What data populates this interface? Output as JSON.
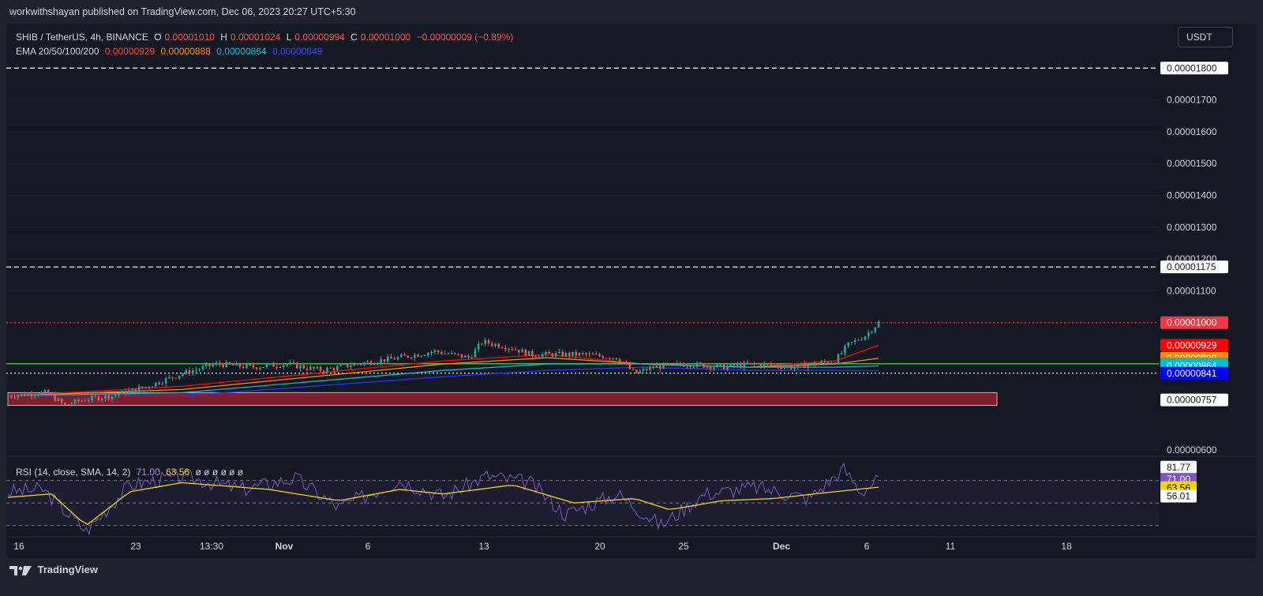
{
  "header": {
    "published_text": "workwithshayan published on TradingView.com, Dec 06, 2023 20:27 UTC+5:30"
  },
  "legend": {
    "symbol": "SHIB / TetherUS, 4h, BINANCE",
    "o_label": "O",
    "o_value": "0.00001010",
    "h_label": "H",
    "h_value": "0.00001024",
    "l_label": "L",
    "l_value": "0.00000994",
    "c_label": "C",
    "c_value": "0.00001000",
    "change": "−0.00000009 (−0.89%)",
    "ema_label": "EMA 20/50/100/200",
    "ema_values": [
      "0.00000929",
      "0.00000888",
      "0.00000864",
      "0.00000849"
    ],
    "rsi_label": "RSI (14, close, SMA, 14, 2)",
    "rsi_value": "71.00",
    "rsi_sma_value": "63.56",
    "rsi_extra": "ø  ø  ø  ø  ø  ø"
  },
  "currency_button": "USDT",
  "colors": {
    "up": "#26a69a",
    "down": "#ef5350",
    "ema20": "#ff0000",
    "ema50": "#ff8c00",
    "ema100": "#00bcd4",
    "ema200": "#2233ff",
    "support_line": "#4caf50",
    "demand_zone": "#7f1f2e",
    "rsi_line": "#7e57c2",
    "rsi_sma": "#f5d40f"
  },
  "chart_data": {
    "type": "candlestick",
    "x_axis_labels": [
      "16",
      "23",
      "13:30",
      "Nov",
      "6",
      "13",
      "20",
      "25",
      "Dec",
      "6",
      "11",
      "18"
    ],
    "y_axis_labels": [
      "0.00001700",
      "0.00001600",
      "0.00001500",
      "0.00001400",
      "0.00001300",
      "0.00001200",
      "0.00001100",
      "0.00000600"
    ],
    "y_range": [
      5.8e-06,
      1.89e-05
    ],
    "price_tags": [
      {
        "label": "0.00001800",
        "value": 1.8e-05,
        "bg": "#ffffff",
        "fg": "#131722"
      },
      {
        "label": "0.00001175",
        "value": 1.175e-05,
        "bg": "#ffffff",
        "fg": "#131722"
      },
      {
        "label": "0.00001000",
        "value": 1e-05,
        "bg": "#f23645",
        "fg": "#ffffff"
      },
      {
        "label": "0.00000929",
        "value": 9.29e-06,
        "bg": "#ff0000",
        "fg": "#ffffff"
      },
      {
        "label": "0.00000888",
        "value": 8.88e-06,
        "bg": "#ff8c00",
        "fg": "#ffffff"
      },
      {
        "label": "0.00000871",
        "value": 8.71e-06,
        "bg": "#4caf50",
        "fg": "#ffffff"
      },
      {
        "label": "0.00000864",
        "value": 8.64e-06,
        "bg": "#00bcd4",
        "fg": "#ffffff"
      },
      {
        "label": "0.00000841",
        "value": 8.41e-06,
        "bg": "#0000ff",
        "fg": "#ffffff"
      },
      {
        "label": "0.00000757",
        "value": 7.57e-06,
        "bg": "#ffffff",
        "fg": "#131722"
      }
    ],
    "horizontal_lines": [
      {
        "value": 1.8e-05,
        "style": "dashed",
        "color": "#ffffff"
      },
      {
        "value": 1.175e-05,
        "style": "dashed",
        "color": "#ffffff"
      },
      {
        "value": 8.71e-06,
        "style": "solid",
        "color": "#4caf50"
      },
      {
        "value": 8.41e-06,
        "style": "dotted",
        "color": "#ffffff"
      },
      {
        "value": 1e-05,
        "style": "dotted",
        "color": "#f23645"
      }
    ],
    "demand_zone": {
      "from": 7.4e-06,
      "to": 7.8e-06
    },
    "price_path": [
      [
        0,
        7.7e-06
      ],
      [
        0.045,
        7.8e-06
      ],
      [
        0.065,
        7.4e-06
      ],
      [
        0.09,
        7.6e-06
      ],
      [
        0.12,
        7.7e-06
      ],
      [
        0.16,
        8e-06
      ],
      [
        0.2,
        8.4e-06
      ],
      [
        0.24,
        8.7e-06
      ],
      [
        0.28,
        8.6e-06
      ],
      [
        0.32,
        8.7e-06
      ],
      [
        0.36,
        8.5e-06
      ],
      [
        0.4,
        8.7e-06
      ],
      [
        0.45,
        8.9e-06
      ],
      [
        0.49,
        9.1e-06
      ],
      [
        0.53,
        8.9e-06
      ],
      [
        0.545,
        9.4e-06
      ],
      [
        0.58,
        9.2e-06
      ],
      [
        0.6,
        9e-06
      ],
      [
        0.64,
        9e-06
      ],
      [
        0.66,
        9e-06
      ],
      [
        0.7,
        8.9e-06
      ],
      [
        0.72,
        8.4e-06
      ],
      [
        0.74,
        8.6e-06
      ],
      [
        0.78,
        8.7e-06
      ],
      [
        0.82,
        8.6e-06
      ],
      [
        0.86,
        8.7e-06
      ],
      [
        0.9,
        8.6e-06
      ],
      [
        0.95,
        8.8e-06
      ],
      [
        0.965,
        9.3e-06
      ],
      [
        0.985,
        9.6e-06
      ],
      [
        1.0,
        1e-05
      ]
    ],
    "ema_series": [
      {
        "name": "EMA 20",
        "path": [
          [
            0,
            7.7e-06
          ],
          [
            0.2,
            8e-06
          ],
          [
            0.5,
            8.8e-06
          ],
          [
            0.62,
            9e-06
          ],
          [
            0.73,
            8.7e-06
          ],
          [
            0.85,
            8.6e-06
          ],
          [
            0.95,
            8.8e-06
          ],
          [
            1.0,
            9.29e-06
          ]
        ]
      },
      {
        "name": "EMA 50",
        "path": [
          [
            0,
            7.7e-06
          ],
          [
            0.2,
            7.9e-06
          ],
          [
            0.5,
            8.7e-06
          ],
          [
            0.62,
            8.9e-06
          ],
          [
            0.73,
            8.7e-06
          ],
          [
            0.85,
            8.6e-06
          ],
          [
            0.95,
            8.7e-06
          ],
          [
            1.0,
            8.88e-06
          ]
        ]
      },
      {
        "name": "EMA 100",
        "path": [
          [
            0,
            7.7e-06
          ],
          [
            0.2,
            7.8e-06
          ],
          [
            0.5,
            8.5e-06
          ],
          [
            0.62,
            8.7e-06
          ],
          [
            0.73,
            8.7e-06
          ],
          [
            0.85,
            8.6e-06
          ],
          [
            0.95,
            8.6e-06
          ],
          [
            1.0,
            8.64e-06
          ]
        ]
      },
      {
        "name": "EMA 200",
        "path": [
          [
            0,
            7.7e-06
          ],
          [
            0.2,
            7.7e-06
          ],
          [
            0.5,
            8.3e-06
          ],
          [
            0.62,
            8.5e-06
          ],
          [
            0.73,
            8.6e-06
          ],
          [
            0.85,
            8.5e-06
          ],
          [
            0.95,
            8.5e-06
          ],
          [
            1.0,
            8.49e-06
          ]
        ]
      }
    ],
    "rsi": {
      "range": [
        20,
        90
      ],
      "levels": [
        70,
        50,
        30
      ],
      "tags": [
        {
          "label": "81.77",
          "value": 81.77,
          "bg": "#ffffff",
          "fg": "#131722"
        },
        {
          "label": "71.00",
          "value": 71.0,
          "bg": "#7e57c2",
          "fg": "#ffffff"
        },
        {
          "label": "63.56",
          "value": 63.56,
          "bg": "#f5d40f",
          "fg": "#131722"
        },
        {
          "label": "56.01",
          "value": 56.01,
          "bg": "#ffffff",
          "fg": "#131722"
        }
      ],
      "sma_path": [
        [
          0,
          55
        ],
        [
          0.05,
          58
        ],
        [
          0.09,
          30
        ],
        [
          0.14,
          60
        ],
        [
          0.2,
          68
        ],
        [
          0.3,
          62
        ],
        [
          0.38,
          52
        ],
        [
          0.45,
          62
        ],
        [
          0.5,
          58
        ],
        [
          0.58,
          66
        ],
        [
          0.65,
          50
        ],
        [
          0.72,
          54
        ],
        [
          0.76,
          44
        ],
        [
          0.82,
          52
        ],
        [
          0.88,
          54
        ],
        [
          0.95,
          60
        ],
        [
          1.0,
          64
        ]
      ],
      "rsi_path": [
        [
          0,
          60
        ],
        [
          0.04,
          62
        ],
        [
          0.09,
          25
        ],
        [
          0.14,
          66
        ],
        [
          0.2,
          74
        ],
        [
          0.27,
          62
        ],
        [
          0.33,
          72
        ],
        [
          0.38,
          46
        ],
        [
          0.45,
          70
        ],
        [
          0.5,
          56
        ],
        [
          0.55,
          74
        ],
        [
          0.6,
          68
        ],
        [
          0.64,
          40
        ],
        [
          0.7,
          58
        ],
        [
          0.75,
          30
        ],
        [
          0.8,
          58
        ],
        [
          0.86,
          64
        ],
        [
          0.92,
          54
        ],
        [
          0.96,
          80
        ],
        [
          0.98,
          60
        ],
        [
          1.0,
          71
        ]
      ]
    }
  },
  "footer": {
    "brand": "TradingView"
  }
}
